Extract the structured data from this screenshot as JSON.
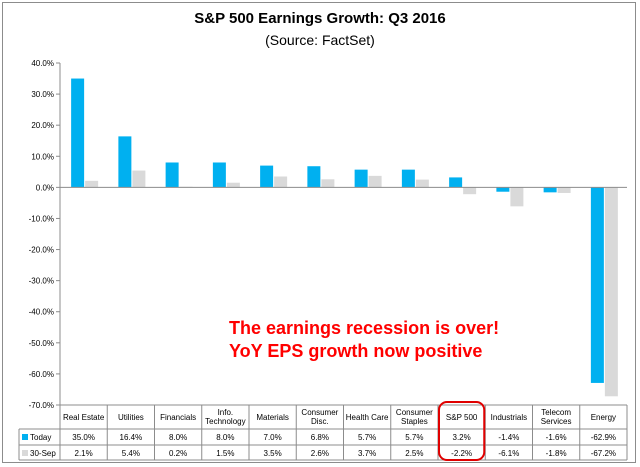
{
  "chart_data": {
    "type": "bar",
    "title": "S&P 500 Earnings Growth: Q3 2016",
    "subtitle": "(Source: FactSet)",
    "ylim": [
      -70,
      40
    ],
    "yticks": [
      "40.0%",
      "30.0%",
      "20.0%",
      "10.0%",
      "0.0%",
      "-10.0%",
      "-20.0%",
      "-30.0%",
      "-40.0%",
      "-50.0%",
      "-60.0%",
      "-70.0%"
    ],
    "ytick_values": [
      40,
      30,
      20,
      10,
      0,
      -10,
      -20,
      -30,
      -40,
      -50,
      -60,
      -70
    ],
    "grid": false,
    "categories": [
      "Real Estate",
      "Utilities",
      "Financials",
      "Info. Technology",
      "Materials",
      "Consumer Disc.",
      "Health Care",
      "Consumer Staples",
      "S&P 500",
      "Industrials",
      "Telecom Services",
      "Energy"
    ],
    "category_lines": [
      [
        "Real Estate"
      ],
      [
        "Utilities"
      ],
      [
        "Financials"
      ],
      [
        "Info.",
        "Technology"
      ],
      [
        "Materials"
      ],
      [
        "Consumer",
        "Disc."
      ],
      [
        "Health Care"
      ],
      [
        "Consumer",
        "Staples"
      ],
      [
        "S&P 500"
      ],
      [
        "Industrials"
      ],
      [
        "Telecom",
        "Services"
      ],
      [
        "Energy"
      ]
    ],
    "series": [
      {
        "name": "Today",
        "color": "#00b0f0",
        "values": [
          35.0,
          16.4,
          8.0,
          8.0,
          7.0,
          6.8,
          5.7,
          5.7,
          3.2,
          -1.4,
          -1.6,
          -62.9
        ],
        "labels": [
          "35.0%",
          "16.4%",
          "8.0%",
          "8.0%",
          "7.0%",
          "6.8%",
          "5.7%",
          "5.7%",
          "3.2%",
          "-1.4%",
          "-1.6%",
          "-62.9%"
        ]
      },
      {
        "name": "30-Sep",
        "color": "#d9d9d9",
        "values": [
          2.1,
          5.4,
          0.2,
          1.5,
          3.5,
          2.6,
          3.7,
          2.5,
          -2.2,
          -6.1,
          -1.8,
          -67.2
        ],
        "labels": [
          "2.1%",
          "5.4%",
          "0.2%",
          "1.5%",
          "3.5%",
          "2.6%",
          "3.7%",
          "2.5%",
          "-2.2%",
          "-6.1%",
          "-1.8%",
          "-67.2%"
        ]
      }
    ],
    "highlight_category": "S&P 500",
    "highlight_color": "#e00000",
    "annotations": [
      "The earnings recession is over!",
      "YoY EPS growth now positive"
    ]
  }
}
